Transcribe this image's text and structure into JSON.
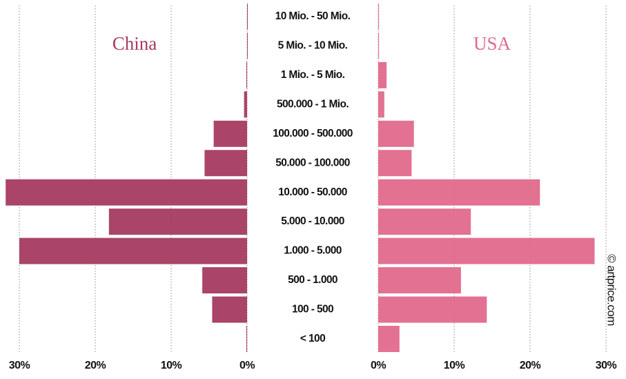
{
  "chart_data": {
    "type": "butterfly",
    "categories": [
      "10 Mio. - 50 Mio.",
      "5 Mio. - 10 Mio.",
      "1 Mio. - 5 Mio.",
      "500.000 - 1 Mio.",
      "100.000 - 500.000",
      "50.000 - 100.000",
      "10.000 - 50.000",
      "5.000 - 10.000",
      "1.000 - 5.000",
      "500 - 1.000",
      "100 - 500",
      "< 100"
    ],
    "series": [
      {
        "name": "China",
        "color": "#a53a60",
        "values": [
          0,
          0,
          0.1,
          0.4,
          4.4,
          5.6,
          31.8,
          18.2,
          30.0,
          5.9,
          4.6,
          0.1
        ]
      },
      {
        "name": "USA",
        "color": "#e0698c",
        "values": [
          0.1,
          0.1,
          1.1,
          0.8,
          4.7,
          4.4,
          21.3,
          12.2,
          28.5,
          10.9,
          14.3,
          2.8
        ]
      }
    ],
    "xlim": [
      0,
      30
    ],
    "xticks": [
      {
        "value": 0,
        "label": "0%"
      },
      {
        "value": 10,
        "label": "10%"
      },
      {
        "value": 20,
        "label": "20%"
      },
      {
        "value": 30,
        "label": "30%"
      }
    ],
    "grid": true,
    "annotation": "© artprice.com"
  }
}
